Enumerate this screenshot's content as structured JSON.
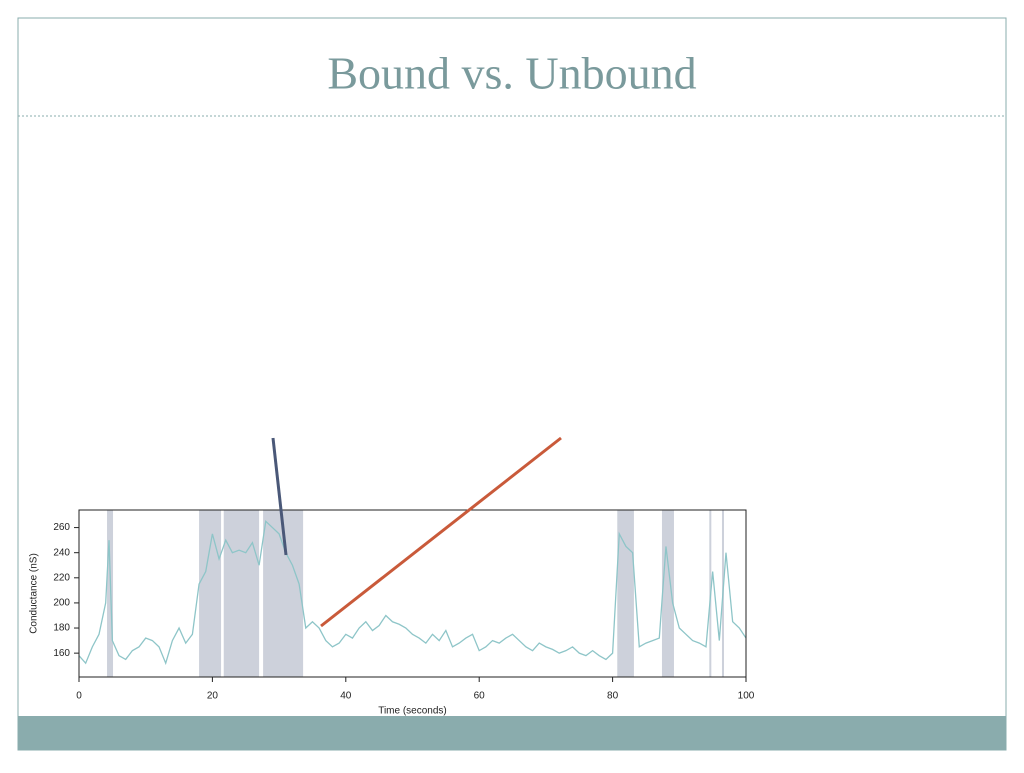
{
  "chart_data": {
    "type": "line",
    "title": "Bound vs. Unbound",
    "x_label": "Time (seconds)",
    "y_label": "Conductance (nS)",
    "xlim": [
      0,
      100
    ],
    "ylim": [
      141,
      274
    ],
    "xticks": [
      0,
      20,
      40,
      60,
      80,
      100
    ],
    "yticks": [
      160,
      180,
      200,
      220,
      240,
      260
    ],
    "shaded_color": "#cdd1db",
    "shaded_ranges": [
      [
        4.2,
        5.1
      ],
      [
        18,
        21.3
      ],
      [
        21.7,
        27
      ],
      [
        27.6,
        33.6
      ],
      [
        80.7,
        83.2
      ],
      [
        87.4,
        89.2
      ],
      [
        94.5,
        94.8
      ],
      [
        96.4,
        96.7
      ]
    ],
    "series": [
      {
        "color": "#8ec5c8",
        "x": [
          0,
          1,
          2,
          3,
          4,
          4.5,
          5,
          6,
          7,
          8,
          9,
          10,
          11,
          12,
          13,
          14,
          15,
          16,
          17,
          18,
          19,
          20,
          21,
          22,
          23,
          24,
          25,
          26,
          27,
          28,
          29,
          30,
          31,
          32,
          33,
          34,
          35,
          36,
          37,
          38,
          39,
          40,
          41,
          42,
          43,
          44,
          45,
          46,
          47,
          48,
          49,
          50,
          51,
          52,
          53,
          54,
          55,
          56,
          57,
          58,
          59,
          60,
          61,
          62,
          63,
          64,
          65,
          66,
          67,
          68,
          69,
          70,
          71,
          72,
          73,
          74,
          75,
          76,
          77,
          78,
          79,
          80,
          81,
          82,
          83,
          84,
          85,
          86,
          87,
          88,
          89,
          90,
          91,
          92,
          93,
          94,
          95,
          96,
          97,
          98,
          99,
          100
        ],
        "values": [
          158,
          152,
          165,
          175,
          200,
          250,
          170,
          158,
          155,
          162,
          165,
          172,
          170,
          165,
          152,
          170,
          180,
          168,
          175,
          215,
          225,
          255,
          235,
          250,
          240,
          242,
          240,
          248,
          230,
          265,
          260,
          255,
          240,
          230,
          215,
          180,
          185,
          180,
          170,
          165,
          168,
          175,
          172,
          180,
          185,
          178,
          182,
          190,
          185,
          183,
          180,
          175,
          172,
          168,
          175,
          170,
          178,
          165,
          168,
          172,
          175,
          162,
          165,
          170,
          168,
          172,
          175,
          170,
          165,
          162,
          168,
          165,
          163,
          160,
          162,
          165,
          160,
          158,
          162,
          158,
          155,
          160,
          255,
          245,
          240,
          165,
          168,
          170,
          172,
          245,
          200,
          180,
          175,
          170,
          168,
          165,
          225,
          170,
          240,
          185,
          180,
          172
        ]
      }
    ]
  }
}
